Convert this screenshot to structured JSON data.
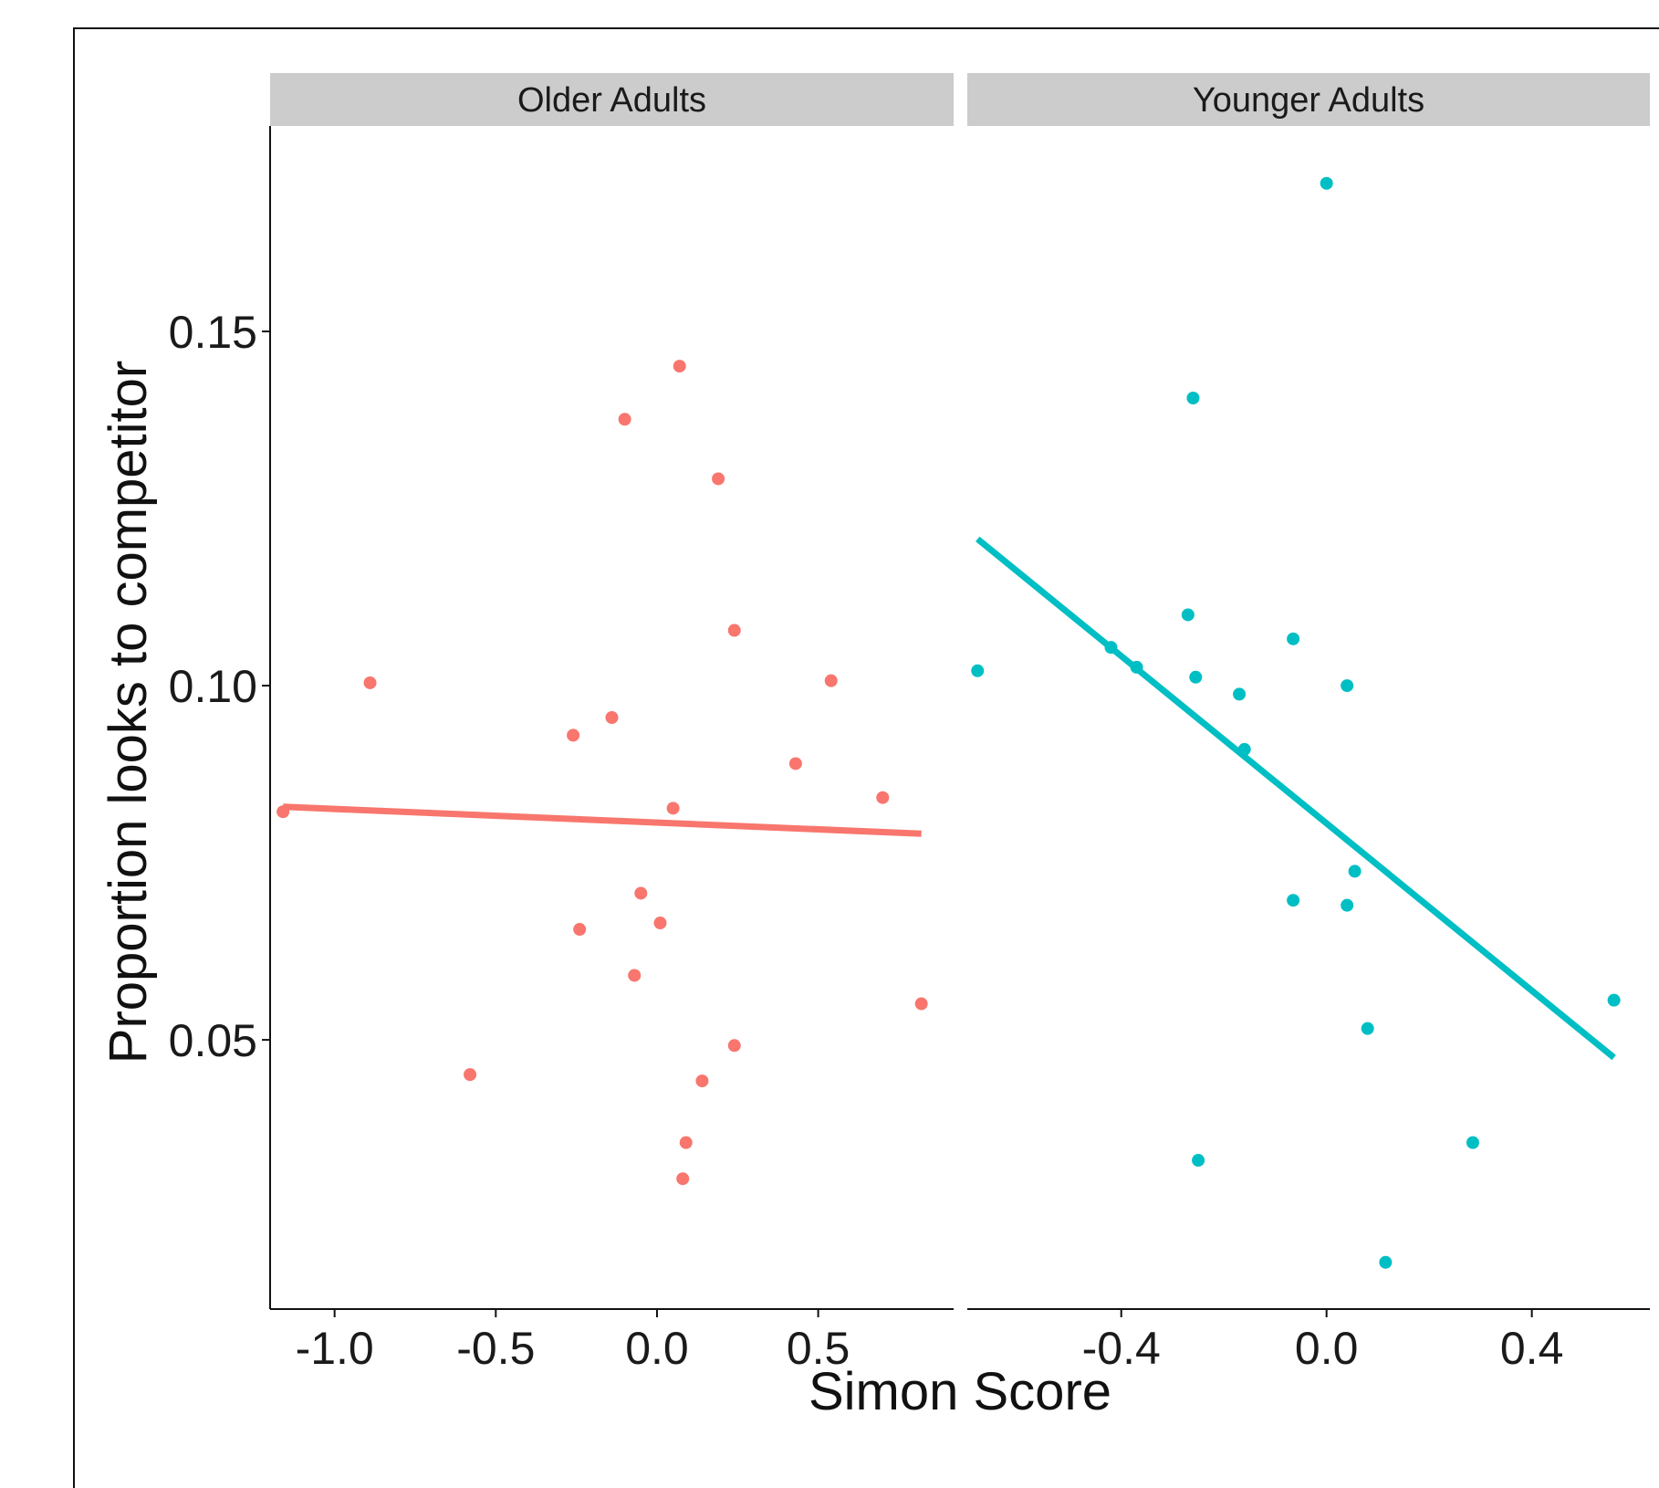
{
  "chart_data": {
    "type": "scatter",
    "xlabel": "Simon Score",
    "ylabel": "Proportion looks to competitor",
    "ylim": [
      0.012,
      0.179
    ],
    "yticks": [
      0.05,
      0.1,
      0.15
    ],
    "ytick_labels": [
      "0.05",
      "0.10",
      "0.15"
    ],
    "grid": false,
    "legend": "none",
    "facets": [
      {
        "name": "Older Adults",
        "color": "#F8766D",
        "xlim": [
          -1.2,
          0.92
        ],
        "xticks": [
          -1.0,
          -0.5,
          0.0,
          0.5
        ],
        "xtick_labels": [
          "-1.0",
          "-0.5",
          "0.0",
          "0.5"
        ],
        "points": [
          {
            "x": -1.16,
            "y": 0.0822
          },
          {
            "x": -0.89,
            "y": 0.1004
          },
          {
            "x": -0.58,
            "y": 0.0451
          },
          {
            "x": -0.26,
            "y": 0.093
          },
          {
            "x": -0.24,
            "y": 0.0656
          },
          {
            "x": -0.14,
            "y": 0.0955
          },
          {
            "x": -0.1,
            "y": 0.1376
          },
          {
            "x": -0.07,
            "y": 0.0591
          },
          {
            "x": -0.05,
            "y": 0.0707
          },
          {
            "x": 0.01,
            "y": 0.0665
          },
          {
            "x": 0.05,
            "y": 0.0827
          },
          {
            "x": 0.07,
            "y": 0.1451
          },
          {
            "x": 0.08,
            "y": 0.0304
          },
          {
            "x": 0.09,
            "y": 0.0355
          },
          {
            "x": 0.14,
            "y": 0.0442
          },
          {
            "x": 0.19,
            "y": 0.1292
          },
          {
            "x": 0.24,
            "y": 0.1078
          },
          {
            "x": 0.24,
            "y": 0.0492
          },
          {
            "x": 0.43,
            "y": 0.089
          },
          {
            "x": 0.54,
            "y": 0.1007
          },
          {
            "x": 0.7,
            "y": 0.0842
          },
          {
            "x": 0.82,
            "y": 0.0551
          }
        ],
        "trend": {
          "x": [
            -1.16,
            0.82
          ],
          "y": [
            0.0829,
            0.0791
          ]
        }
      },
      {
        "name": "Younger Adults",
        "color": "#00BFC4",
        "xlim": [
          -0.7,
          0.63
        ],
        "xticks": [
          -0.4,
          0.0,
          0.4
        ],
        "xtick_labels": [
          "-0.4",
          "0.0",
          "0.4"
        ],
        "points": [
          {
            "x": -0.68,
            "y": 0.1021
          },
          {
            "x": -0.42,
            "y": 0.1054
          },
          {
            "x": -0.37,
            "y": 0.1026
          },
          {
            "x": -0.27,
            "y": 0.11
          },
          {
            "x": -0.26,
            "y": 0.1406
          },
          {
            "x": -0.255,
            "y": 0.1012
          },
          {
            "x": -0.25,
            "y": 0.033
          },
          {
            "x": -0.17,
            "y": 0.0988
          },
          {
            "x": -0.16,
            "y": 0.091
          },
          {
            "x": -0.065,
            "y": 0.0697
          },
          {
            "x": -0.065,
            "y": 0.1066
          },
          {
            "x": 0.0,
            "y": 0.1709
          },
          {
            "x": 0.04,
            "y": 0.069
          },
          {
            "x": 0.04,
            "y": 0.1
          },
          {
            "x": 0.055,
            "y": 0.0738
          },
          {
            "x": 0.08,
            "y": 0.0516
          },
          {
            "x": 0.115,
            "y": 0.0186
          },
          {
            "x": 0.285,
            "y": 0.0355
          },
          {
            "x": 0.56,
            "y": 0.0556
          }
        ],
        "trend": {
          "x": [
            -0.68,
            0.56
          ],
          "y": [
            0.1207,
            0.0475
          ]
        }
      }
    ]
  }
}
